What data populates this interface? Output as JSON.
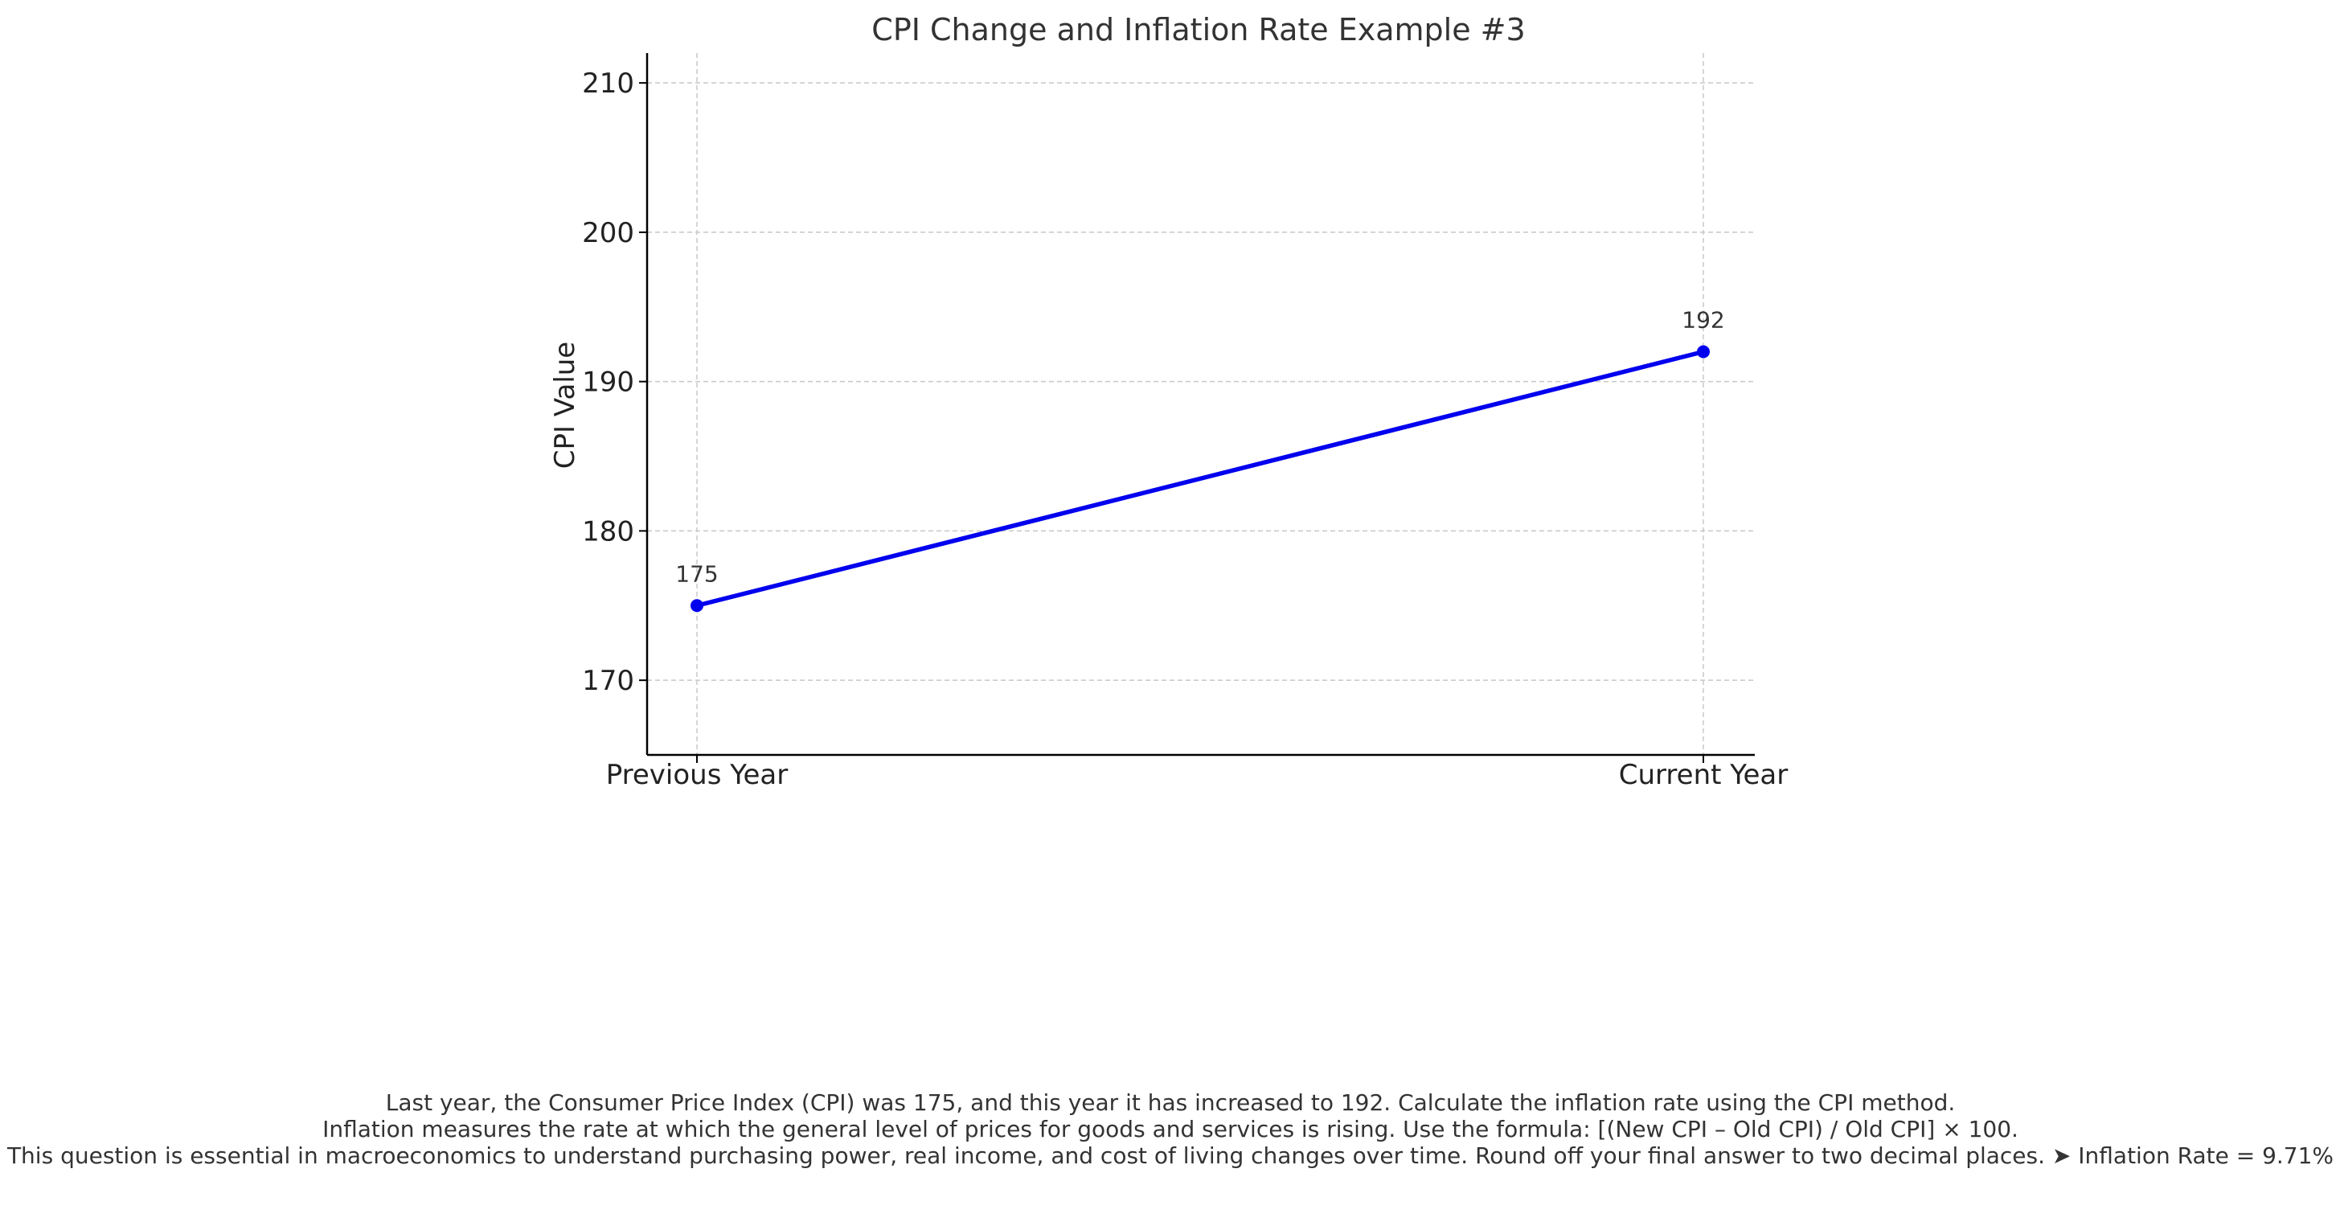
{
  "chart_data": {
    "type": "line",
    "title": "CPI Change and Inflation Rate Example #3",
    "xlabel": "",
    "ylabel": "CPI Value",
    "categories": [
      "Previous Year",
      "Current Year"
    ],
    "series": [
      {
        "values": [
          175,
          192
        ],
        "color": "#0000ee"
      }
    ],
    "data_labels": [
      "175",
      "192"
    ],
    "ylim": [
      165,
      212
    ],
    "yticks": [
      170,
      180,
      190,
      200,
      210
    ],
    "grid": true,
    "grid_style": "dashed"
  },
  "caption": {
    "lines": [
      "Last year, the Consumer Price Index (CPI) was 175, and this year it has increased to 192. Calculate the inflation rate using the CPI method.",
      "Inflation measures the rate at which the general level of prices for goods and services is rising. Use the formula: [(New CPI – Old CPI) / Old CPI] × 100.",
      "This question is essential in macroeconomics to understand purchasing power, real income, and cost of living changes over time. Round off your final answer to two decimal places. ➤ Inflation Rate = 9.71%"
    ]
  }
}
